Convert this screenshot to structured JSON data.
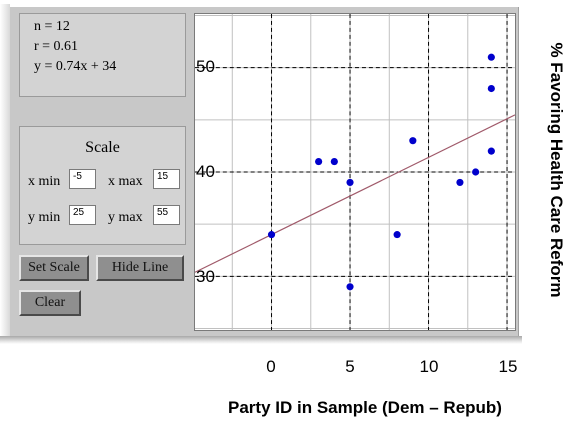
{
  "stats": {
    "n": "n = 12",
    "r": "r = 0.61",
    "equation": "y = 0.74x + 34"
  },
  "scale": {
    "title": "Scale",
    "x_min_label": "x min",
    "x_min_value": "-5",
    "x_max_label": "x max",
    "x_max_value": "15",
    "y_min_label": "y min",
    "y_min_value": "25",
    "y_max_label": "y max",
    "y_max_value": "55"
  },
  "buttons": {
    "set_scale": "Set Scale",
    "hide_line": "Hide Line",
    "clear": "Clear"
  },
  "colors": {
    "point": "#0000cc",
    "line": "#a05a6a",
    "grid": "#000000",
    "panel": "#c8c8c8"
  },
  "chart_data": {
    "type": "scatter",
    "xlabel": "Party ID in Sample (Dem – Repub)",
    "ylabel": "% Favoring Health Care Reform",
    "xlim": [
      -5,
      15
    ],
    "ylim": [
      25,
      55
    ],
    "x_ticks": [
      0,
      5,
      10,
      15
    ],
    "y_ticks": [
      30,
      40,
      50
    ],
    "x_tick_labels": [
      "0",
      "5",
      "10",
      "15"
    ],
    "y_tick_labels": [
      "30",
      "40",
      "50"
    ],
    "grid": true,
    "points": [
      {
        "x": 0,
        "y": 34
      },
      {
        "x": 3,
        "y": 41
      },
      {
        "x": 4,
        "y": 41
      },
      {
        "x": 5,
        "y": 39
      },
      {
        "x": 5,
        "y": 29
      },
      {
        "x": 8,
        "y": 34
      },
      {
        "x": 9,
        "y": 43
      },
      {
        "x": 12,
        "y": 39
      },
      {
        "x": 13,
        "y": 40
      },
      {
        "x": 14,
        "y": 51
      },
      {
        "x": 14,
        "y": 48
      },
      {
        "x": 14,
        "y": 42
      }
    ],
    "fit_line": {
      "slope": 0.74,
      "intercept": 34
    }
  }
}
